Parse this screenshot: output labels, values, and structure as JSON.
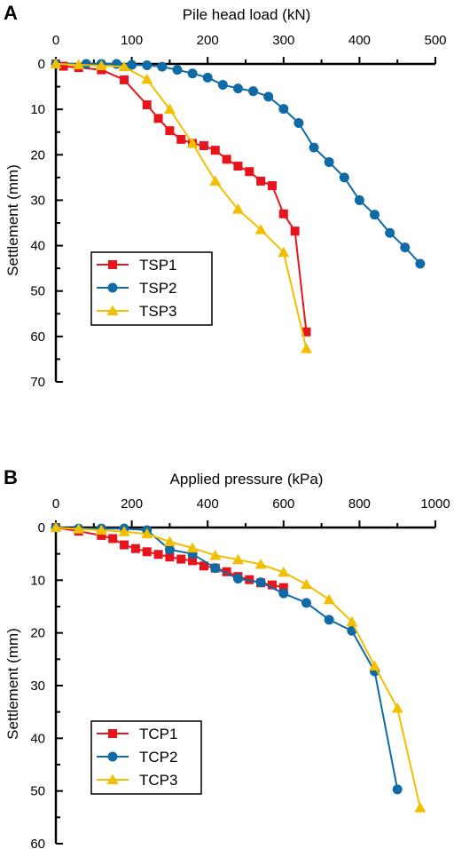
{
  "chart_data": [
    {
      "type": "line",
      "panel_label": "A",
      "xlabel": "Pile head load (kN)",
      "ylabel": "Settlement (mm)",
      "x_axis_position": "top",
      "y_inverted": true,
      "xlim": [
        0,
        500
      ],
      "ylim": [
        0,
        70
      ],
      "xticks": [
        0,
        100,
        200,
        300,
        400,
        500
      ],
      "yticks": [
        0,
        10,
        20,
        30,
        40,
        50,
        60,
        70
      ],
      "legend_position": "lower-left",
      "series": [
        {
          "name": "TSP1",
          "color": "#e8141c",
          "marker": "square",
          "x": [
            0,
            10,
            30,
            60,
            90,
            120,
            135,
            150,
            165,
            180,
            195,
            210,
            225,
            240,
            255,
            270,
            285,
            300,
            315,
            330
          ],
          "y": [
            0,
            0.5,
            0.8,
            1.3,
            3.5,
            9,
            12,
            14.7,
            16.6,
            17.5,
            18,
            19,
            21,
            22.5,
            23.7,
            25.8,
            26.8,
            33,
            36.8,
            59
          ]
        },
        {
          "name": "TSP2",
          "color": "#0f6aa5",
          "marker": "circle",
          "x": [
            0,
            40,
            60,
            80,
            100,
            120,
            140,
            160,
            180,
            200,
            220,
            240,
            260,
            280,
            300,
            320,
            340,
            360,
            380,
            400,
            420,
            440,
            460,
            480
          ],
          "y": [
            0,
            0,
            0,
            0,
            0.2,
            0.3,
            0.6,
            1.3,
            2.1,
            3,
            4.6,
            5.4,
            6,
            7.2,
            9.9,
            13,
            18.4,
            21.6,
            25,
            30,
            33.2,
            37.2,
            40.4,
            44
          ]
        },
        {
          "name": "TSP3",
          "color": "#f2bf00",
          "marker": "triangle",
          "x": [
            0,
            30,
            60,
            90,
            120,
            150,
            180,
            210,
            240,
            270,
            300,
            330
          ],
          "y": [
            0,
            0.2,
            0.4,
            0.6,
            3.4,
            10,
            17.5,
            25.8,
            32,
            36.5,
            41.5,
            62.7
          ]
        }
      ]
    },
    {
      "type": "line",
      "panel_label": "B",
      "xlabel": "Applied pressure (kPa)",
      "ylabel": "Settlement (mm)",
      "x_axis_position": "top",
      "y_inverted": true,
      "xlim": [
        0,
        1000
      ],
      "ylim": [
        0,
        60
      ],
      "xticks": [
        0,
        200,
        400,
        600,
        800,
        1000
      ],
      "yticks": [
        0,
        10,
        20,
        30,
        40,
        50,
        60
      ],
      "legend_position": "lower-left",
      "series": [
        {
          "name": "TCP1",
          "color": "#e8141c",
          "marker": "square",
          "x": [
            0,
            60,
            120,
            150,
            180,
            210,
            240,
            270,
            300,
            330,
            360,
            390,
            420,
            450,
            480,
            510,
            540,
            570,
            600
          ],
          "y": [
            0,
            0.7,
            1.5,
            2.1,
            3.3,
            4,
            4.6,
            5.1,
            5.6,
            6,
            6.3,
            7.3,
            7.7,
            8.4,
            9.3,
            9.9,
            10.5,
            10.9,
            11.4
          ]
        },
        {
          "name": "TCP2",
          "color": "#0f6aa5",
          "marker": "circle",
          "x": [
            0,
            60,
            120,
            180,
            240,
            300,
            360,
            420,
            480,
            540,
            600,
            660,
            720,
            780,
            840,
            900
          ],
          "y": [
            0,
            0.2,
            0.2,
            0.2,
            0.5,
            4.2,
            5,
            7.7,
            9.7,
            10.4,
            12.5,
            14.3,
            17.5,
            19.6,
            27.3,
            49.7
          ]
        },
        {
          "name": "TCP3",
          "color": "#f2bf00",
          "marker": "triangle",
          "x": [
            0,
            60,
            120,
            180,
            240,
            300,
            360,
            420,
            480,
            540,
            600,
            660,
            720,
            780,
            840,
            900,
            960
          ],
          "y": [
            0,
            0.3,
            0.5,
            0.8,
            1.2,
            2.7,
            3.9,
            5.3,
            6.1,
            7,
            8.5,
            10.8,
            13.7,
            17.9,
            26.3,
            34.3,
            53.2
          ]
        }
      ]
    }
  ]
}
